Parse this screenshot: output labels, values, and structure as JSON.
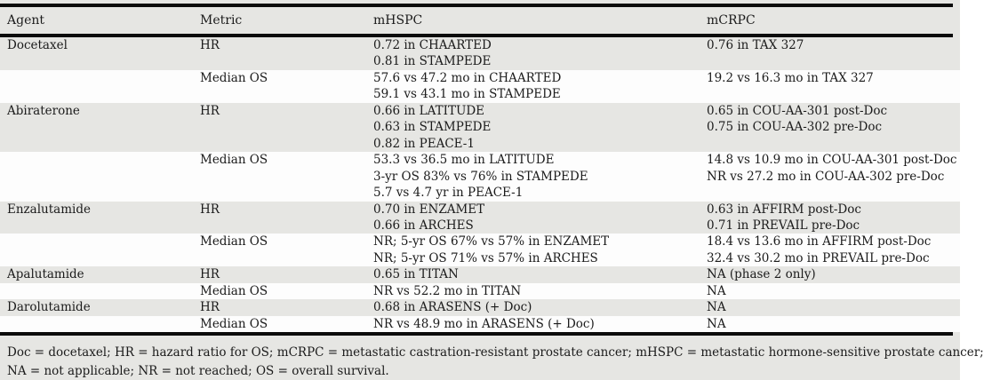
{
  "table": {
    "columns": [
      {
        "key": "agent",
        "label": "Agent"
      },
      {
        "key": "metric",
        "label": "Metric"
      },
      {
        "key": "mhspc",
        "label": "mHSPC"
      },
      {
        "key": "mcrpc",
        "label": "mCRPC"
      }
    ],
    "rows": [
      {
        "agent": "Docetaxel",
        "metric": "HR",
        "mhspc": [
          "0.72 in CHAARTED",
          "0.81 in STAMPEDE"
        ],
        "mcrpc": [
          "0.76 in TAX 327"
        ]
      },
      {
        "agent": "",
        "metric": "Median OS",
        "mhspc": [
          "57.6 vs 47.2 mo in CHAARTED",
          "59.1 vs 43.1 mo in STAMPEDE"
        ],
        "mcrpc": [
          "19.2 vs 16.3 mo in TAX 327"
        ]
      },
      {
        "agent": "Abiraterone",
        "metric": "HR",
        "mhspc": [
          "0.66 in LATITUDE",
          "0.63 in STAMPEDE",
          "0.82 in PEACE-1"
        ],
        "mcrpc": [
          "0.65 in COU-AA-301 post-Doc",
          "0.75 in COU-AA-302 pre-Doc"
        ]
      },
      {
        "agent": "",
        "metric": "Median OS",
        "mhspc": [
          "53.3 vs 36.5 mo in LATITUDE",
          "3-yr OS 83% vs 76% in STAMPEDE",
          "5.7 vs 4.7 yr in PEACE-1"
        ],
        "mcrpc": [
          "14.8 vs 10.9 mo in COU-AA-301 post-Doc",
          "NR vs 27.2 mo in COU-AA-302 pre-Doc"
        ]
      },
      {
        "agent": "Enzalutamide",
        "metric": "HR",
        "mhspc": [
          "0.70 in ENZAMET",
          "0.66 in ARCHES"
        ],
        "mcrpc": [
          "0.63 in AFFIRM post-Doc",
          "0.71 in PREVAIL pre-Doc"
        ]
      },
      {
        "agent": "",
        "metric": "Median OS",
        "mhspc": [
          "NR; 5-yr OS 67% vs 57% in ENZAMET",
          "NR; 5-yr OS 71% vs 57% in ARCHES"
        ],
        "mcrpc": [
          "18.4 vs 13.6 mo in AFFIRM post-Doc",
          "32.4 vs 30.2 mo in PREVAIL pre-Doc"
        ]
      },
      {
        "agent": "Apalutamide",
        "metric": "HR",
        "mhspc": [
          "0.65 in TITAN"
        ],
        "mcrpc": [
          "NA (phase 2 only)"
        ]
      },
      {
        "agent": "",
        "metric": "Median OS",
        "mhspc": [
          "NR vs 52.2 mo in TITAN"
        ],
        "mcrpc": [
          "NA"
        ]
      },
      {
        "agent": "Darolutamide",
        "metric": "HR",
        "mhspc": [
          "0.68 in ARASENS (+ Doc)"
        ],
        "mcrpc": [
          "NA"
        ]
      },
      {
        "agent": "",
        "metric": "Median OS",
        "mhspc": [
          "NR vs 48.9 mo in ARASENS (+ Doc)"
        ],
        "mcrpc": [
          "NA"
        ]
      }
    ],
    "footnote_lines": [
      "Doc = docetaxel; HR = hazard ratio for OS; mCRPC = metastatic castration-resistant prostate cancer; mHSPC = metastatic hormone-sensitive prostate cancer;",
      "NA = not applicable; NR = not reached; OS = overall survival."
    ]
  },
  "colors": {
    "row_shade": "#e6e6e3",
    "row_plain": "#fdfdfd",
    "rule": "#0b0b0b",
    "text": "#1b1b1b"
  }
}
